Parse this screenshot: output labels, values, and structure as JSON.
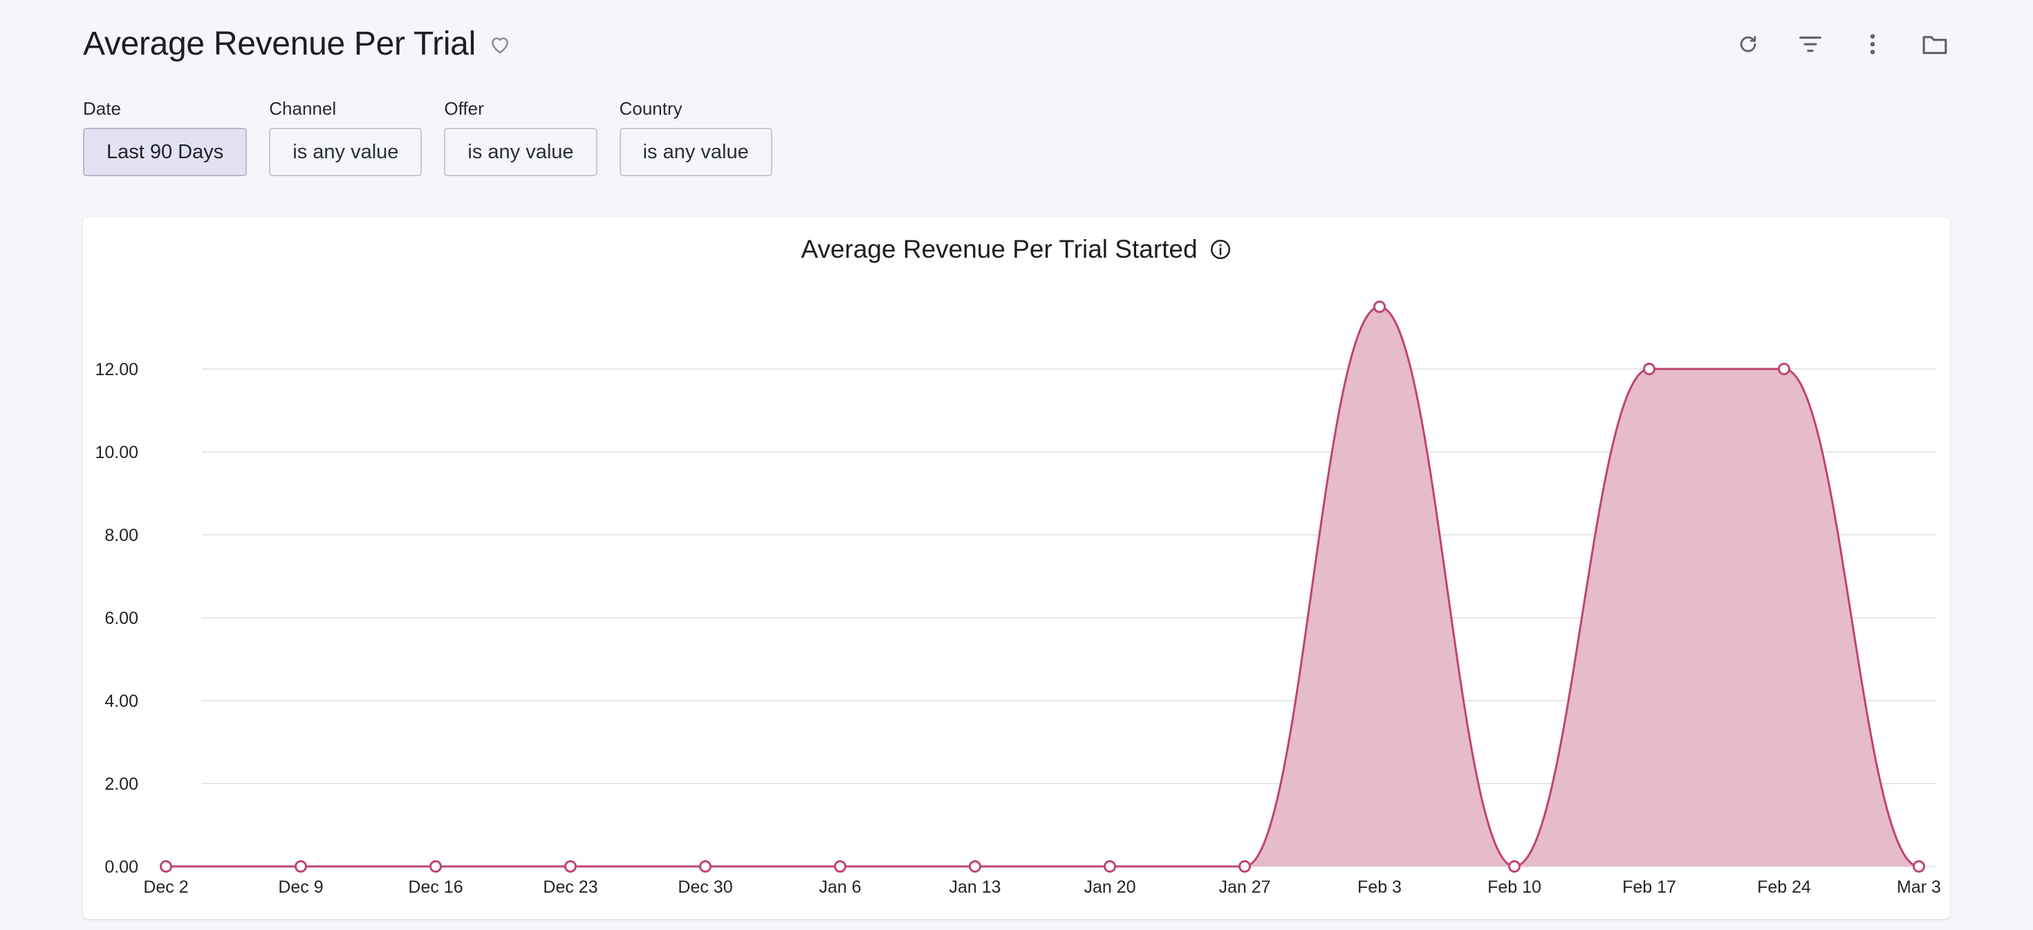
{
  "header": {
    "title": "Average Revenue Per Trial",
    "icons": [
      "heart-icon"
    ],
    "toolbar": [
      "refresh-icon",
      "filter-icon",
      "more-vert-icon",
      "folder-icon"
    ]
  },
  "filters": [
    {
      "label": "Date",
      "value": "Last 90 Days",
      "active": true
    },
    {
      "label": "Channel",
      "value": "is any value",
      "active": false
    },
    {
      "label": "Offer",
      "value": "is any value",
      "active": false
    },
    {
      "label": "Country",
      "value": "is any value",
      "active": false
    }
  ],
  "colors": {
    "accent": "#c0446f",
    "area_fill": "#e5b7c7",
    "grid": "#e6e7ea",
    "active_filter_bg": "#e3e2f2"
  },
  "chart": {
    "title": "Average Revenue Per Trial Started",
    "icon": "info-icon"
  },
  "chart_data": {
    "type": "area",
    "title": "Average Revenue Per Trial Started",
    "x": [
      "Dec 2",
      "Dec 9",
      "Dec 16",
      "Dec 23",
      "Dec 30",
      "Jan 6",
      "Jan 13",
      "Jan 20",
      "Jan 27",
      "Feb 3",
      "Feb 10",
      "Feb 17",
      "Feb 24",
      "Mar 3"
    ],
    "series": [
      {
        "values": [
          0,
          0,
          0,
          0,
          0,
          0,
          0,
          0,
          0,
          13.5,
          0,
          12.0,
          12.0,
          0
        ]
      }
    ],
    "yticks": [
      "0.00",
      "2.00",
      "4.00",
      "6.00",
      "8.00",
      "10.00",
      "12.00"
    ],
    "ylim": [
      0,
      14
    ],
    "grid": true,
    "legend": false,
    "curve": "smooth",
    "markers": true
  }
}
